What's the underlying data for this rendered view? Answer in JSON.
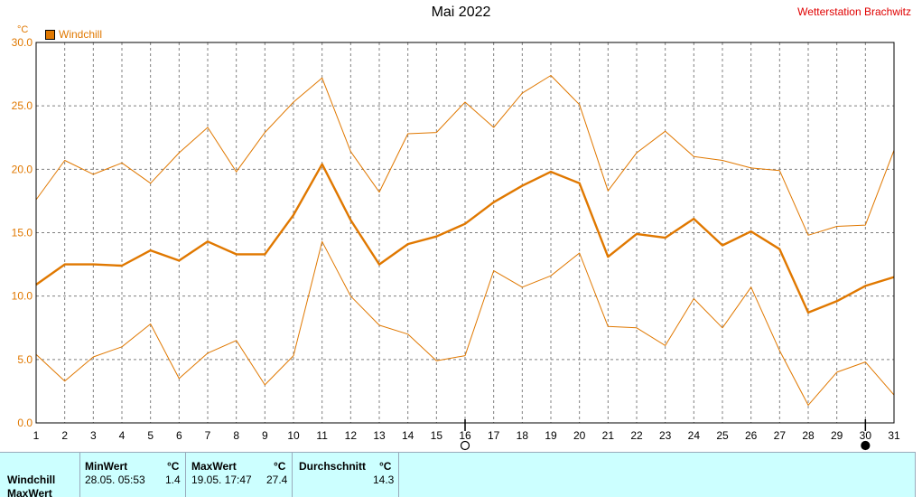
{
  "title": "Mai 2022",
  "station": "Wetterstation Brachwitz",
  "colors": {
    "series": "#e07800",
    "grid": "#808080",
    "table_bg": "#ccffff"
  },
  "chart_data": {
    "type": "line",
    "title": "Mai 2022",
    "ylabel": "°C",
    "ylim": [
      0,
      30
    ],
    "yticks": [
      "0.0",
      "5.0",
      "10.0",
      "15.0",
      "20.0",
      "25.0",
      "30.0"
    ],
    "x": [
      1,
      2,
      3,
      4,
      5,
      6,
      7,
      8,
      9,
      10,
      11,
      12,
      13,
      14,
      15,
      16,
      17,
      18,
      19,
      20,
      21,
      22,
      23,
      24,
      25,
      26,
      27,
      28,
      29,
      30,
      31
    ],
    "legend": "Windchill",
    "grid": true,
    "series": [
      {
        "name": "Windchill",
        "role": "max",
        "values": [
          17.6,
          20.7,
          19.6,
          20.5,
          18.9,
          21.3,
          23.3,
          19.8,
          22.9,
          25.3,
          27.2,
          21.4,
          18.2,
          22.8,
          22.9,
          25.3,
          23.3,
          26.0,
          27.4,
          25.1,
          18.3,
          21.3,
          23.0,
          21.0,
          20.7,
          20.1,
          19.9,
          14.8,
          15.5,
          15.6,
          21.5
        ]
      },
      {
        "name": "Windchill",
        "role": "avg",
        "values": [
          10.9,
          12.5,
          12.5,
          12.4,
          13.6,
          12.8,
          14.3,
          13.3,
          13.3,
          16.4,
          20.4,
          16.0,
          12.5,
          14.1,
          14.7,
          15.7,
          17.4,
          18.7,
          19.8,
          18.9,
          13.1,
          14.9,
          14.6,
          16.1,
          14.0,
          15.1,
          13.7,
          8.7,
          9.6,
          10.8,
          11.5
        ]
      },
      {
        "name": "Windchill",
        "role": "min",
        "values": [
          5.4,
          3.3,
          5.2,
          6.0,
          7.8,
          3.5,
          5.5,
          6.5,
          3.0,
          5.3,
          14.3,
          10.0,
          7.7,
          7.0,
          4.9,
          5.3,
          12.0,
          10.7,
          11.6,
          13.4,
          7.6,
          7.5,
          6.1,
          9.8,
          7.5,
          10.7,
          5.7,
          1.4,
          4.0,
          4.8,
          2.2
        ]
      }
    ],
    "markers": [
      {
        "day": 16,
        "symbol": "full-moon"
      },
      {
        "day": 30,
        "symbol": "new-moon"
      }
    ]
  },
  "table": {
    "row_label": "Windchill",
    "row_label2": "MaxWert",
    "min": {
      "header": "MinWert",
      "unit": "°C",
      "date": "28.05.  05:53",
      "value": "1.4"
    },
    "max": {
      "header": "MaxWert",
      "unit": "°C",
      "date": "19.05.  17:47",
      "value": "27.4"
    },
    "avg": {
      "header": "Durchschnitt",
      "unit": "°C",
      "value": "14.3"
    }
  }
}
